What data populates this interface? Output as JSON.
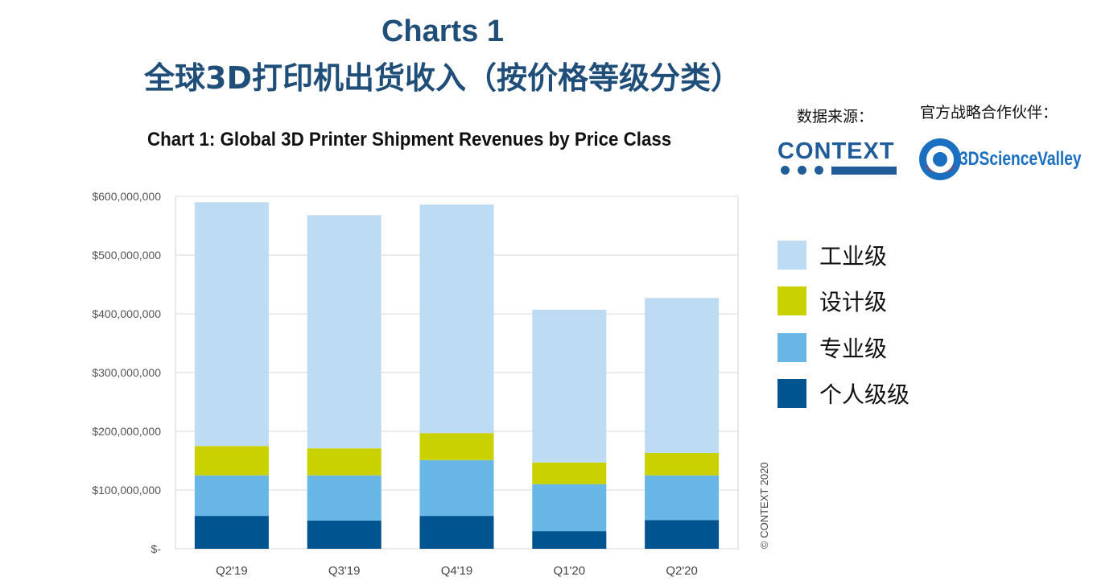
{
  "header": {
    "title": "Charts 1",
    "subtitle": "全球3D打印机出货收入（按价格等级分类）"
  },
  "sources": {
    "data_source_label": "数据来源：",
    "partner_label": "官方战略合作伙伴：",
    "context_logo": "CONTEXT",
    "partner_logo": "3DScienceValley"
  },
  "copyright": "© CONTEXT 2020",
  "colors": {
    "industrial": "#bddcf3",
    "design": "#c9d200",
    "professional": "#68b6e5",
    "personal": "#005591"
  },
  "chart_data": {
    "type": "bar",
    "stacked": true,
    "title": "Chart 1: Global 3D Printer Shipment Revenues by Price Class",
    "categories": [
      "Q2'19",
      "Q3'19",
      "Q4'19",
      "Q1'20",
      "Q2'20"
    ],
    "ylim": [
      0,
      600000000
    ],
    "yticks": [
      0,
      100000000,
      200000000,
      300000000,
      400000000,
      500000000,
      600000000
    ],
    "ytick_labels": [
      "$-",
      "$100,000,000",
      "$200,000,000",
      "$300,000,000",
      "$400,000,000",
      "$500,000,000",
      "$600,000,000"
    ],
    "legend_position": "right",
    "series": [
      {
        "name": "个人级级",
        "key": "personal",
        "values": [
          56000000,
          48000000,
          56000000,
          30000000,
          49000000
        ]
      },
      {
        "name": "专业级",
        "key": "professional",
        "values": [
          69000000,
          77000000,
          95000000,
          80000000,
          76000000
        ]
      },
      {
        "name": "设计级",
        "key": "design",
        "values": [
          50000000,
          46000000,
          46000000,
          37000000,
          38000000
        ]
      },
      {
        "name": "工业级",
        "key": "industrial",
        "values": [
          415000000,
          397000000,
          389000000,
          260000000,
          264000000
        ]
      }
    ],
    "legend_order": [
      "工业级",
      "设计级",
      "专业级",
      "个人级级"
    ]
  }
}
